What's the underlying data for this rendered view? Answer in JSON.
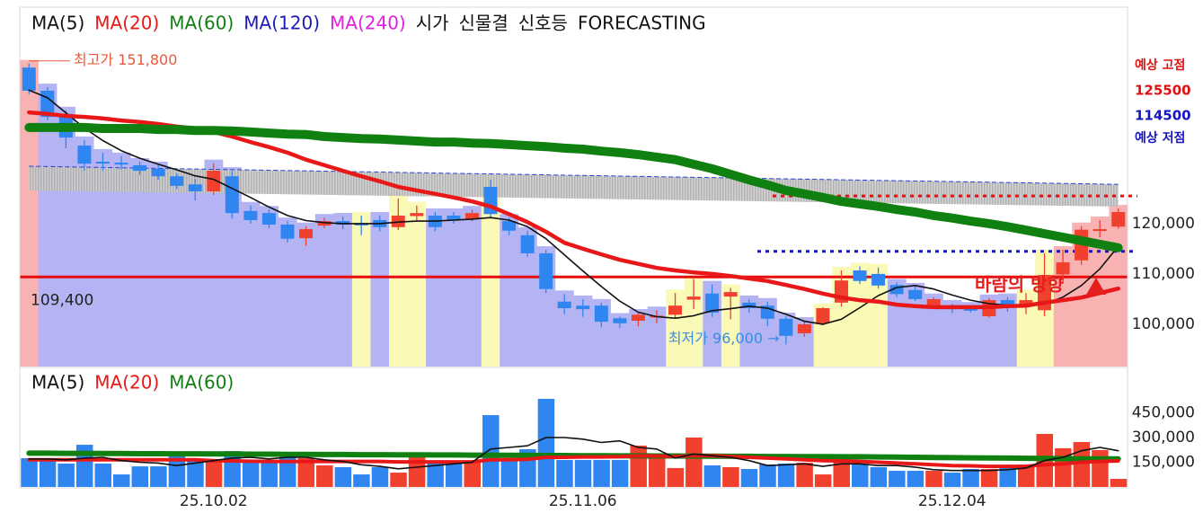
{
  "chart_data": [
    {
      "type": "candlestick",
      "open": [
        151000,
        146400,
        141800,
        135500,
        132300,
        132100,
        131600,
        130900,
        129400,
        127800,
        126400,
        129400,
        122500,
        122100,
        119800,
        117100,
        119600,
        120500,
        120000,
        120700,
        119300,
        121500,
        121600,
        121600,
        121000,
        127300,
        120500,
        117700,
        114100,
        104500,
        103700,
        103700,
        101200,
        100700,
        101500,
        101900,
        104900,
        106100,
        105500,
        104300,
        103700,
        101100,
        98200,
        100200,
        104300,
        110700,
        110000,
        107800,
        106800,
        103800,
        103700,
        103400,
        101600,
        104800,
        103900,
        102800,
        109900,
        112700,
        118800,
        119400
      ],
      "high": [
        151800,
        147100,
        142500,
        136600,
        134100,
        133400,
        132300,
        131600,
        130000,
        128900,
        132000,
        130500,
        123600,
        122800,
        120500,
        119500,
        121200,
        121400,
        121600,
        121600,
        125000,
        123600,
        122300,
        122300,
        122800,
        128700,
        121200,
        118600,
        114800,
        106000,
        105000,
        104300,
        101500,
        102300,
        102800,
        106200,
        109000,
        107900,
        107200,
        105000,
        104500,
        101600,
        100700,
        103400,
        110700,
        111500,
        111300,
        108300,
        107500,
        105400,
        104100,
        103700,
        105200,
        105400,
        106200,
        114100,
        114800,
        119500,
        120700,
        123000
      ],
      "low": [
        145700,
        140500,
        135000,
        130500,
        130500,
        130800,
        129700,
        128700,
        126900,
        124600,
        125700,
        121000,
        120000,
        119100,
        116300,
        115600,
        119100,
        118900,
        117700,
        118500,
        118700,
        120700,
        118500,
        120000,
        120500,
        121000,
        117700,
        113400,
        106200,
        102000,
        101500,
        99400,
        99300,
        99600,
        100200,
        101200,
        103000,
        101500,
        101000,
        102300,
        99600,
        96000,
        97500,
        99800,
        103500,
        108000,
        107100,
        105400,
        104600,
        103400,
        102200,
        102300,
        101300,
        102500,
        102000,
        101600,
        108300,
        111800,
        117300,
        119000
      ],
      "close": [
        146400,
        141200,
        137100,
        131900,
        132000,
        131800,
        130500,
        129400,
        127500,
        126400,
        130500,
        122100,
        120700,
        119800,
        117000,
        118900,
        120500,
        119800,
        119900,
        119300,
        121600,
        122100,
        119300,
        120700,
        122100,
        121900,
        118600,
        114100,
        107000,
        103200,
        103000,
        100500,
        100200,
        101900,
        101700,
        103700,
        105500,
        102300,
        106400,
        103200,
        101100,
        97700,
        100000,
        103200,
        108700,
        108600,
        107700,
        106000,
        105000,
        105000,
        103000,
        102700,
        104800,
        103400,
        104800,
        109800,
        112300,
        118800,
        118900,
        122300
      ],
      "colors": {
        "up": "#f2402e",
        "down": "#2f86f0"
      },
      "series": [
        {
          "name": "MA(5)",
          "color": "#111111",
          "values": [
            146500,
            145000,
            142000,
            139000,
            136500,
            134500,
            133000,
            131800,
            130700,
            129500,
            128800,
            127000,
            125200,
            123300,
            121600,
            120600,
            120200,
            120000,
            120000,
            120000,
            120300,
            120500,
            120500,
            120700,
            120900,
            121200,
            120700,
            119400,
            117000,
            113800,
            110600,
            107500,
            104600,
            102400,
            101500,
            101200,
            101700,
            102700,
            103100,
            103600,
            103200,
            102000,
            100600,
            100000,
            101000,
            103300,
            105700,
            107300,
            107700,
            107000,
            105800,
            104800,
            104100,
            103800,
            103800,
            104000,
            105400,
            107700,
            111000,
            115500
          ]
        },
        {
          "name": "MA(20)",
          "color": "#e81818",
          "values": [
            142100,
            141800,
            141400,
            141200,
            140900,
            140500,
            140200,
            139800,
            139300,
            138900,
            138200,
            137300,
            136200,
            135200,
            134100,
            132700,
            131600,
            130500,
            129400,
            128400,
            127300,
            126600,
            125900,
            125200,
            124400,
            123400,
            121900,
            120300,
            118400,
            116200,
            115000,
            113900,
            112800,
            112000,
            111200,
            110700,
            110300,
            110000,
            109600,
            109100,
            108600,
            107800,
            107000,
            106100,
            105300,
            104800,
            104500,
            103900,
            103600,
            103400,
            103400,
            103400,
            103400,
            103600,
            103700,
            104300,
            104800,
            105300,
            106200,
            107100
          ]
        },
        {
          "name": "MA(60)",
          "color": "#108010",
          "values": [
            139100,
            139100,
            139100,
            139100,
            138900,
            138900,
            138900,
            138700,
            138700,
            138500,
            138500,
            138400,
            138200,
            138000,
            137800,
            137700,
            137300,
            137100,
            136900,
            136800,
            136600,
            136400,
            136200,
            136200,
            136000,
            135900,
            135700,
            135500,
            135300,
            135000,
            134800,
            134400,
            134100,
            133700,
            133200,
            132700,
            131800,
            130900,
            129800,
            128700,
            127700,
            126600,
            125900,
            125200,
            124400,
            123900,
            123400,
            122800,
            122300,
            121600,
            121100,
            120500,
            120000,
            119400,
            118700,
            118000,
            117300,
            116600,
            115900,
            115200
          ]
        }
      ],
      "legend_extra": [
        {
          "name": "MA(120)",
          "color": "#1a1ab8"
        },
        {
          "name": "MA(240)",
          "color": "#e020e0"
        }
      ],
      "indicators": [
        "시가",
        "신물결",
        "신호등",
        "FORECASTING"
      ],
      "signal": [
        "red",
        "blue",
        "blue",
        "blue",
        "blue",
        "blue",
        "blue",
        "blue",
        "blue",
        "blue",
        "blue",
        "blue",
        "blue",
        "blue",
        "blue",
        "blue",
        "blue",
        "blue",
        "yellow",
        "blue",
        "yellow",
        "yellow",
        "blue",
        "blue",
        "blue",
        "yellow",
        "blue",
        "blue",
        "blue",
        "blue",
        "blue",
        "blue",
        "blue",
        "blue",
        "blue",
        "yellow",
        "yellow",
        "blue",
        "yellow",
        "blue",
        "blue",
        "blue",
        "blue",
        "yellow",
        "yellow",
        "yellow",
        "yellow",
        "blue",
        "blue",
        "blue",
        "blue",
        "blue",
        "blue",
        "blue",
        "yellow",
        "yellow",
        "red",
        "red",
        "red",
        "red"
      ],
      "signal_colors": {
        "red": "#f8b2b2",
        "blue": "#b4b4f4",
        "yellow": "#fafab6"
      },
      "cloud": {
        "upper": [
          131400,
          127800
        ],
        "lower": [
          126600,
          123400
        ],
        "color": "#b4b4b4",
        "edge_color": "#2a40d0"
      },
      "forecast": {
        "high": {
          "label": "예상 고점",
          "value": 125500,
          "color": "#e01010"
        },
        "low": {
          "label": "예상 저점",
          "value": 114500,
          "color": "#1414c0"
        }
      },
      "support": {
        "value": 109400,
        "label": "109,400",
        "color": "#e80c0c"
      },
      "annotations": {
        "high": "최고가 151,800",
        "low": "최저가 96,000 →",
        "wind": "바람의 방향"
      },
      "ylim": [
        91600,
        163000
      ],
      "yticks": [
        {
          "value": 100000,
          "label": "100,000"
        },
        {
          "value": 110000,
          "label": "110,000"
        },
        {
          "value": 120000,
          "label": "120,000"
        }
      ]
    },
    {
      "type": "bar",
      "categories": [
        null,
        null,
        null,
        null,
        null,
        null,
        null,
        null,
        null,
        null,
        "25.10.02",
        null,
        null,
        null,
        null,
        null,
        null,
        null,
        null,
        null,
        null,
        null,
        null,
        null,
        null,
        null,
        null,
        null,
        null,
        null,
        "25.11.06",
        null,
        null,
        null,
        null,
        null,
        null,
        null,
        null,
        null,
        null,
        null,
        null,
        null,
        null,
        null,
        null,
        null,
        null,
        null,
        "25.12.04",
        null,
        null,
        null,
        null,
        null,
        null,
        null,
        null,
        null
      ],
      "values": [
        174500,
        174500,
        142000,
        256000,
        142000,
        76000,
        125000,
        125000,
        202000,
        164000,
        164000,
        218000,
        164000,
        164000,
        185000,
        175000,
        131000,
        120000,
        76000,
        120000,
        87000,
        191000,
        158000,
        153000,
        153000,
        436000,
        158000,
        229000,
        535000,
        164000,
        164000,
        164000,
        164000,
        251000,
        175000,
        115000,
        300000,
        131000,
        120000,
        109000,
        136000,
        142000,
        147000,
        76000,
        196000,
        136000,
        120000,
        98000,
        98000,
        98000,
        87000,
        109000,
        109000,
        120000,
        136000,
        322000,
        235000,
        273000,
        224000,
        49000
      ],
      "series": [
        {
          "name": "MA(5)",
          "color": "#111111",
          "values": [
            170000,
            170000,
            165000,
            175000,
            180000,
            160000,
            150000,
            145000,
            130000,
            145000,
            160000,
            175000,
            180000,
            170000,
            180000,
            180000,
            165000,
            155000,
            135000,
            125000,
            110000,
            120000,
            130000,
            140000,
            150000,
            230000,
            240000,
            250000,
            300000,
            300000,
            290000,
            270000,
            280000,
            240000,
            230000,
            175000,
            200000,
            190000,
            180000,
            160000,
            130000,
            135000,
            140000,
            125000,
            140000,
            140000,
            130000,
            130000,
            120000,
            105000,
            100000,
            100000,
            100000,
            105000,
            115000,
            160000,
            180000,
            220000,
            240000,
            220000
          ]
        },
        {
          "name": "MA(20)",
          "color": "#e81818",
          "values": [
            165000,
            165000,
            165000,
            165000,
            165000,
            165000,
            165000,
            165000,
            165000,
            165000,
            160000,
            158000,
            156000,
            155000,
            155000,
            155000,
            155000,
            155000,
            155000,
            155000,
            152000,
            152000,
            152000,
            152000,
            152000,
            165000,
            165000,
            168000,
            180000,
            180000,
            182000,
            182000,
            184000,
            188000,
            188000,
            185000,
            190000,
            190000,
            185000,
            180000,
            175000,
            170000,
            165000,
            160000,
            158000,
            155000,
            150000,
            145000,
            140000,
            135000,
            130000,
            128000,
            125000,
            125000,
            125000,
            135000,
            140000,
            150000,
            155000,
            158000
          ]
        },
        {
          "name": "MA(60)",
          "color": "#108010",
          "values": [
            205000,
            205000,
            204000,
            204000,
            203000,
            203000,
            202000,
            202000,
            201000,
            201000,
            200000,
            200000,
            199000,
            199000,
            198000,
            198000,
            197000,
            197000,
            196000,
            196000,
            195000,
            195000,
            194000,
            194000,
            193000,
            193000,
            192000,
            192000,
            191000,
            191000,
            190000,
            190000,
            189000,
            189000,
            188000,
            188000,
            187000,
            187000,
            186000,
            186000,
            185000,
            185000,
            184000,
            184000,
            183000,
            183000,
            182000,
            181000,
            180000,
            179000,
            178000,
            177000,
            176000,
            175000,
            174000,
            173000,
            172000,
            171000,
            170000,
            170000
          ]
        }
      ],
      "ylim": [
        0,
        720000
      ],
      "yticks": [
        {
          "value": 150000,
          "label": "150,000"
        },
        {
          "value": 300000,
          "label": "300,000"
        },
        {
          "value": 450000,
          "label": "450,000"
        }
      ]
    }
  ]
}
